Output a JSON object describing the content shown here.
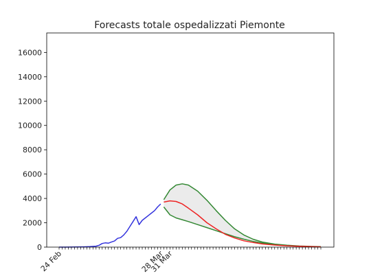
{
  "chart_data": {
    "type": "line",
    "title": "Forecasts totale ospedalizzati Piemonte",
    "xlabel": "",
    "ylabel": "",
    "x_start": "2020-02-24",
    "x_end": "2020-05-19",
    "ylim": [
      0,
      17600
    ],
    "yticks": [
      0,
      2000,
      4000,
      6000,
      8000,
      10000,
      12000,
      14000,
      16000
    ],
    "xtick_labels": [
      {
        "date": "2020-02-24",
        "label": "24 Feb"
      },
      {
        "date": "2020-03-28",
        "label": "28 Mar"
      },
      {
        "date": "2020-03-31",
        "label": "31 Mar"
      }
    ],
    "grid": false,
    "legend": "none",
    "colors": {
      "observed": "#3333dd",
      "forecast": "#ee2222",
      "bounds": "#338833",
      "band": "#ebebeb"
    },
    "series": [
      {
        "role": "observed",
        "points": [
          [
            "2020-02-24",
            0
          ],
          [
            "2020-02-26",
            2
          ],
          [
            "2020-02-28",
            5
          ],
          [
            "2020-03-01",
            10
          ],
          [
            "2020-03-03",
            20
          ],
          [
            "2020-03-05",
            40
          ],
          [
            "2020-03-07",
            80
          ],
          [
            "2020-03-08",
            150
          ],
          [
            "2020-03-09",
            300
          ],
          [
            "2020-03-10",
            350
          ],
          [
            "2020-03-11",
            320
          ],
          [
            "2020-03-12",
            420
          ],
          [
            "2020-03-13",
            500
          ],
          [
            "2020-03-14",
            720
          ],
          [
            "2020-03-15",
            780
          ],
          [
            "2020-03-16",
            1000
          ],
          [
            "2020-03-17",
            1300
          ],
          [
            "2020-03-18",
            1700
          ],
          [
            "2020-03-19",
            2100
          ],
          [
            "2020-03-20",
            2500
          ],
          [
            "2020-03-21",
            1850
          ],
          [
            "2020-03-22",
            2200
          ],
          [
            "2020-03-23",
            2400
          ],
          [
            "2020-03-24",
            2600
          ],
          [
            "2020-03-25",
            2800
          ],
          [
            "2020-03-26",
            3000
          ],
          [
            "2020-03-27",
            3300
          ],
          [
            "2020-03-28",
            3550
          ]
        ]
      },
      {
        "role": "forecast",
        "points": [
          [
            "2020-03-29",
            3700
          ],
          [
            "2020-03-31",
            3800
          ],
          [
            "2020-04-02",
            3750
          ],
          [
            "2020-04-04",
            3550
          ],
          [
            "2020-04-06",
            3200
          ],
          [
            "2020-04-09",
            2650
          ],
          [
            "2020-04-12",
            2000
          ],
          [
            "2020-04-15",
            1500
          ],
          [
            "2020-04-18",
            1050
          ],
          [
            "2020-04-21",
            750
          ],
          [
            "2020-04-24",
            520
          ],
          [
            "2020-04-27",
            380
          ],
          [
            "2020-04-30",
            260
          ],
          [
            "2020-05-04",
            170
          ],
          [
            "2020-05-08",
            110
          ],
          [
            "2020-05-12",
            70
          ],
          [
            "2020-05-16",
            40
          ],
          [
            "2020-05-19",
            25
          ]
        ]
      },
      {
        "role": "upper-bound",
        "points": [
          [
            "2020-03-29",
            3900
          ],
          [
            "2020-03-31",
            4700
          ],
          [
            "2020-04-02",
            5100
          ],
          [
            "2020-04-04",
            5200
          ],
          [
            "2020-04-06",
            5100
          ],
          [
            "2020-04-09",
            4600
          ],
          [
            "2020-04-12",
            3850
          ],
          [
            "2020-04-15",
            3000
          ],
          [
            "2020-04-18",
            2200
          ],
          [
            "2020-04-21",
            1500
          ],
          [
            "2020-04-24",
            1000
          ],
          [
            "2020-04-27",
            650
          ],
          [
            "2020-04-30",
            420
          ],
          [
            "2020-05-04",
            250
          ],
          [
            "2020-05-08",
            150
          ],
          [
            "2020-05-12",
            90
          ],
          [
            "2020-05-16",
            55
          ],
          [
            "2020-05-19",
            35
          ]
        ]
      },
      {
        "role": "lower-bound",
        "points": [
          [
            "2020-03-29",
            3300
          ],
          [
            "2020-03-31",
            2650
          ],
          [
            "2020-04-02",
            2400
          ],
          [
            "2020-04-04",
            2250
          ],
          [
            "2020-04-06",
            2100
          ],
          [
            "2020-04-09",
            1850
          ],
          [
            "2020-04-12",
            1600
          ],
          [
            "2020-04-15",
            1350
          ],
          [
            "2020-04-18",
            1100
          ],
          [
            "2020-04-21",
            850
          ],
          [
            "2020-04-24",
            650
          ],
          [
            "2020-04-27",
            470
          ],
          [
            "2020-04-30",
            330
          ],
          [
            "2020-05-04",
            200
          ],
          [
            "2020-05-08",
            120
          ],
          [
            "2020-05-12",
            70
          ],
          [
            "2020-05-16",
            35
          ],
          [
            "2020-05-19",
            20
          ]
        ]
      }
    ]
  }
}
